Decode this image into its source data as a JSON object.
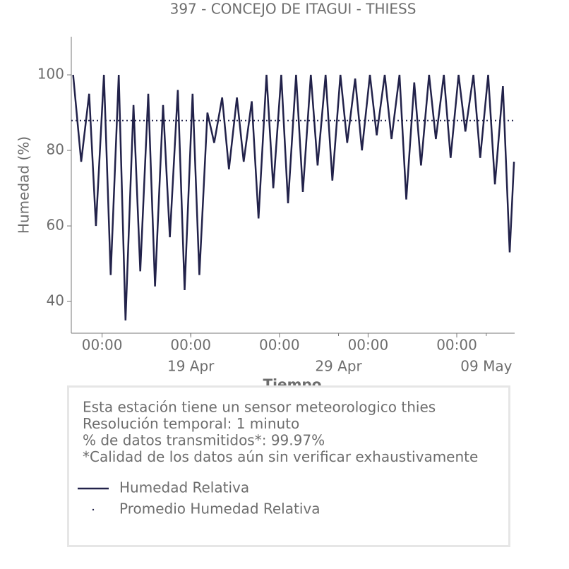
{
  "chart_data": {
    "type": "line",
    "title": "397 - CONCEJO DE ITAGUI - THIESS",
    "xlabel": "Tiempo",
    "ylabel": "Humedad (%)",
    "x": [
      "11 Apr 01:00",
      "11 Apr 14:00",
      "12 Apr 03:00",
      "12 Apr 14:00",
      "13 Apr 03:00",
      "13 Apr 14:00",
      "14 Apr 03:00",
      "14 Apr 14:00",
      "15 Apr 03:00",
      "15 Apr 14:00",
      "16 Apr 03:00",
      "16 Apr 14:00",
      "17 Apr 03:00",
      "17 Apr 14:00",
      "18 Apr 03:00",
      "18 Apr 14:00",
      "19 Apr 03:00",
      "19 Apr 14:00",
      "20 Apr 03:00",
      "20 Apr 14:00",
      "21 Apr 03:00",
      "21 Apr 14:00",
      "22 Apr 03:00",
      "22 Apr 14:00",
      "23 Apr 03:00",
      "23 Apr 14:00",
      "24 Apr 03:00",
      "24 Apr 14:00",
      "25 Apr 03:00",
      "25 Apr 14:00",
      "26 Apr 03:00",
      "26 Apr 14:00",
      "27 Apr 03:00",
      "27 Apr 14:00",
      "28 Apr 03:00",
      "28 Apr 14:00",
      "29 Apr 03:00",
      "29 Apr 14:00",
      "30 Apr 03:00",
      "30 Apr 14:00",
      "01 May 03:00",
      "01 May 14:00",
      "02 May 03:00",
      "02 May 14:00",
      "03 May 03:00",
      "03 May 14:00",
      "04 May 03:00",
      "04 May 14:00",
      "05 May 03:00",
      "05 May 14:00",
      "06 May 03:00",
      "06 May 14:00",
      "07 May 03:00",
      "07 May 14:00",
      "08 May 03:00",
      "08 May 14:00",
      "09 May 03:00",
      "09 May 14:00",
      "10 May 03:00",
      "10 May 14:00",
      "10 May 21:00"
    ],
    "series": [
      {
        "name": "Humedad Relativa",
        "color": "#22224a",
        "style": "solid",
        "values": [
          100,
          77,
          95,
          60,
          100,
          47,
          100,
          35,
          92,
          48,
          95,
          44,
          92,
          57,
          96,
          43,
          95,
          47,
          90,
          82,
          94,
          75,
          94,
          77,
          93,
          62,
          100,
          70,
          100,
          66,
          100,
          69,
          100,
          76,
          100,
          72,
          100,
          82,
          99,
          80,
          100,
          84,
          100,
          83,
          100,
          67,
          98,
          76,
          100,
          83,
          100,
          78,
          100,
          85,
          100,
          78,
          100,
          71,
          97,
          53,
          77
        ]
      },
      {
        "name": "Promedio Humedad Relativa",
        "color": "#22224a",
        "style": "dotted",
        "value": 87.9
      }
    ],
    "xlim": [
      "10 Apr 22:00",
      "10 May 22:00"
    ],
    "xticks": [
      {
        "value": "13 Apr 00:00",
        "label": "00:00"
      },
      {
        "value": "19 Apr 00:00",
        "label": "00:00"
      },
      {
        "value": "25 Apr 00:00",
        "label": "00:00"
      },
      {
        "value": "01 May 00:00",
        "label": "00:00"
      },
      {
        "value": "07 May 00:00",
        "label": "00:00"
      }
    ],
    "xticks_minor": [
      {
        "value": "19 Apr 00:00",
        "label": "19 Apr"
      },
      {
        "value": "29 Apr 00:00",
        "label": "29 Apr"
      },
      {
        "value": "09 May 00:00",
        "label": "09 May"
      }
    ],
    "ylim": [
      31.6,
      110.1
    ],
    "yticks": [
      40,
      60,
      80,
      100
    ],
    "info": [
      "Esta estación tiene un sensor meteorologico thies",
      "Resolución temporal: 1 minuto",
      "% de datos transmitidos*: 99.97%",
      "*Calidad de los datos aún sin verificar exhaustivamente"
    ]
  }
}
